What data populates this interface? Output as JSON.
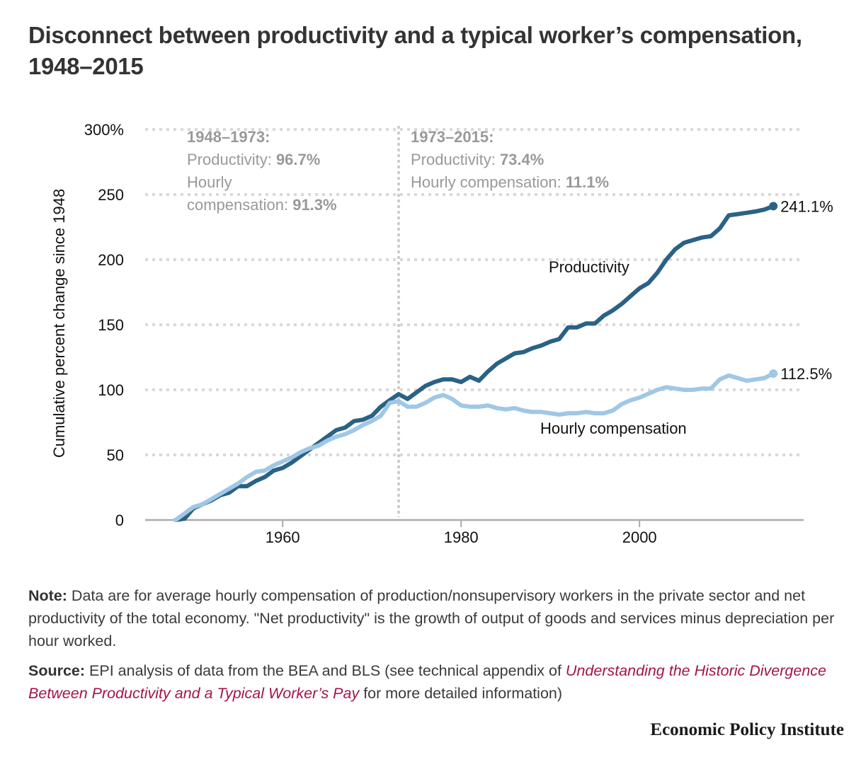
{
  "title": "Disconnect between productivity and a typical worker’s compensation, 1948–2015",
  "notes": {
    "note_label": "Note:",
    "note_text": " Data are for average hourly compensation of production/nonsupervisory workers in the private sector and net productivity of the total economy. \"Net productivity\" is the growth of output of goods and services minus depreciation per hour worked.",
    "source_label": "Source:",
    "source_text_before": " EPI analysis of data from the BEA and BLS (see technical appendix of ",
    "source_link": "Understanding the Historic Divergence Between Productivity and a Typical Worker’s Pay",
    "source_text_after": " for more detailed information)"
  },
  "brand": "Economic Policy Institute",
  "colors": {
    "productivity": "#2a6285",
    "compensation": "#9fc7e6",
    "grid": "#d9d9d9",
    "annotation": "#999999",
    "link": "#a3154a"
  },
  "chart_data": {
    "type": "line",
    "title": "Disconnect between productivity and a typical worker’s compensation, 1948–2015",
    "xlabel": "",
    "ylabel": "Cumulative percent change since 1948",
    "xlim": [
      1945,
      2019
    ],
    "ylim": [
      0,
      300
    ],
    "grid": true,
    "x_ticks": [
      1960,
      1980,
      2000
    ],
    "y_ticks": [
      {
        "value": 0,
        "label": "0"
      },
      {
        "value": 50,
        "label": "50"
      },
      {
        "value": 100,
        "label": "100"
      },
      {
        "value": 150,
        "label": "150"
      },
      {
        "value": 200,
        "label": "200"
      },
      {
        "value": 250,
        "label": "250"
      },
      {
        "value": 300,
        "label": "300%"
      }
    ],
    "reference_line": {
      "x": 1973
    },
    "x": [
      1948,
      1949,
      1950,
      1951,
      1952,
      1953,
      1954,
      1955,
      1956,
      1957,
      1958,
      1959,
      1960,
      1961,
      1962,
      1963,
      1964,
      1965,
      1966,
      1967,
      1968,
      1969,
      1970,
      1971,
      1972,
      1973,
      1974,
      1975,
      1976,
      1977,
      1978,
      1979,
      1980,
      1981,
      1982,
      1983,
      1984,
      1985,
      1986,
      1987,
      1988,
      1989,
      1990,
      1991,
      1992,
      1993,
      1994,
      1995,
      1996,
      1997,
      1998,
      1999,
      2000,
      2001,
      2002,
      2003,
      2004,
      2005,
      2006,
      2007,
      2008,
      2009,
      2010,
      2011,
      2012,
      2013,
      2014,
      2015
    ],
    "series": [
      {
        "name": "Productivity",
        "label": "Productivity",
        "end_label": "241.1%",
        "values": [
          0,
          1,
          9,
          12,
          15,
          19,
          21,
          26,
          26,
          30,
          33,
          38,
          40,
          44,
          49,
          54,
          59,
          64,
          69,
          71,
          76,
          77,
          80,
          87,
          92,
          96.7,
          93,
          98,
          103,
          106,
          108,
          108,
          106,
          110,
          107,
          114,
          120,
          124,
          128,
          129,
          132,
          134,
          137,
          139,
          148,
          148,
          151,
          151,
          157,
          161,
          166,
          172,
          178,
          182,
          190,
          200,
          208,
          213,
          215,
          217,
          218,
          224,
          234,
          235,
          236,
          237,
          238.5,
          241.1
        ]
      },
      {
        "name": "Hourly compensation",
        "label": "Hourly compensation",
        "end_label": "112.5%",
        "values": [
          0,
          5,
          10,
          12,
          16,
          20,
          24,
          28,
          33,
          37,
          38,
          42,
          45,
          48,
          52,
          55,
          57,
          61,
          64,
          66,
          69,
          73,
          76,
          80,
          90,
          91.3,
          87,
          87,
          90,
          94,
          96,
          93,
          88,
          87,
          87,
          88,
          86,
          85,
          86,
          84,
          83,
          83,
          82,
          81,
          82,
          82,
          83,
          82,
          82,
          84,
          89,
          92,
          94,
          97,
          100,
          102,
          101,
          100,
          100,
          101,
          101,
          108,
          111,
          109,
          107,
          108,
          109,
          112.5
        ]
      }
    ],
    "annotations": [
      {
        "period": "1948–1973:",
        "lines": [
          {
            "label": "Productivity: ",
            "value": "96.7%"
          },
          {
            "label": "Hourly",
            "value": ""
          },
          {
            "label": "compensation: ",
            "value": "91.3%"
          }
        ]
      },
      {
        "period": "1973–2015:",
        "lines": [
          {
            "label": "Productivity: ",
            "value": "73.4%"
          },
          {
            "label": "Hourly compensation: ",
            "value": "11.1%"
          }
        ]
      }
    ]
  }
}
